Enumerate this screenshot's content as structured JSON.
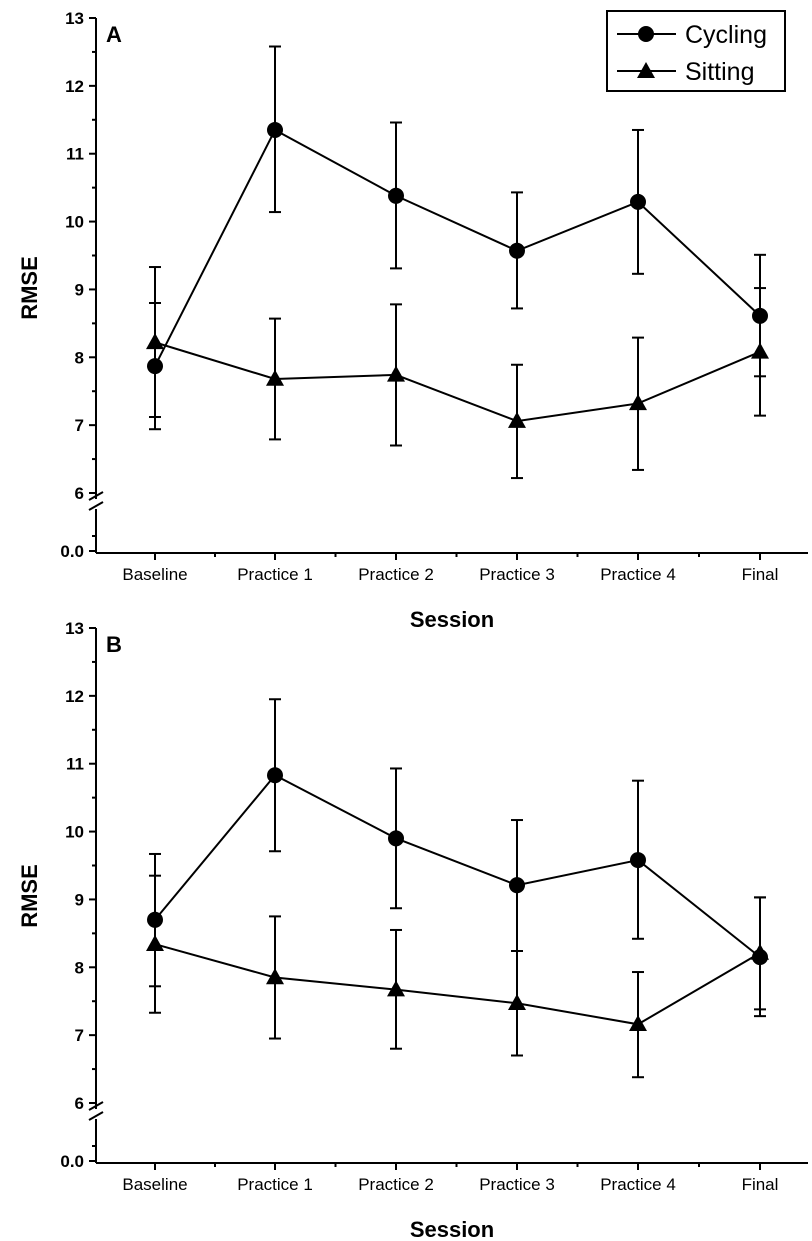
{
  "chart_data": [
    {
      "panel_label": "A",
      "type": "line",
      "categories": [
        "Baseline",
        "Practice 1",
        "Practice 2",
        "Practice 3",
        "Practice 4",
        "Final"
      ],
      "xlabel": "Session",
      "ylabel": "RMSE",
      "ylim": [
        6,
        13
      ],
      "yticks": [
        "0.0",
        "6",
        "7",
        "8",
        "9",
        "10",
        "11",
        "12",
        "13"
      ],
      "axis_break": true,
      "grid": false,
      "legend_position": "top-right",
      "series": [
        {
          "name": "Cycling",
          "marker": "circle",
          "values": [
            7.87,
            11.35,
            10.38,
            9.57,
            10.29,
            8.61
          ],
          "error_upper": [
            9.33,
            12.58,
            11.46,
            10.43,
            11.35,
            9.51
          ],
          "error_lower": [
            6.94,
            10.14,
            9.31,
            8.72,
            9.23,
            7.72
          ]
        },
        {
          "name": "Sitting",
          "marker": "triangle",
          "values": [
            8.22,
            7.68,
            7.74,
            7.06,
            7.32,
            8.08
          ],
          "error_upper": [
            8.8,
            8.57,
            8.78,
            7.89,
            8.29,
            9.02
          ],
          "error_lower": [
            7.12,
            6.79,
            6.7,
            6.22,
            6.34,
            7.14
          ]
        }
      ]
    },
    {
      "panel_label": "B",
      "type": "line",
      "categories": [
        "Baseline",
        "Practice 1",
        "Practice 2",
        "Practice 3",
        "Practice 4",
        "Final"
      ],
      "xlabel": "Session",
      "ylabel": "RMSE",
      "ylim": [
        6,
        13
      ],
      "yticks": [
        "0.0",
        "6",
        "7",
        "8",
        "9",
        "10",
        "11",
        "12",
        "13"
      ],
      "axis_break": true,
      "grid": false,
      "series": [
        {
          "name": "Cycling",
          "marker": "circle",
          "values": [
            8.7,
            10.83,
            9.9,
            9.21,
            9.58,
            8.15
          ],
          "error_upper": [
            9.67,
            11.95,
            10.93,
            10.17,
            10.75,
            9.03
          ],
          "error_lower": [
            7.72,
            9.71,
            8.87,
            8.24,
            8.42,
            7.28
          ]
        },
        {
          "name": "Sitting",
          "marker": "triangle",
          "values": [
            8.34,
            7.85,
            7.67,
            7.47,
            7.16,
            8.21
          ],
          "error_upper": [
            9.35,
            8.75,
            8.55,
            8.24,
            7.93,
            9.03
          ],
          "error_lower": [
            7.33,
            6.95,
            6.8,
            6.7,
            6.38,
            7.38
          ]
        }
      ]
    }
  ]
}
